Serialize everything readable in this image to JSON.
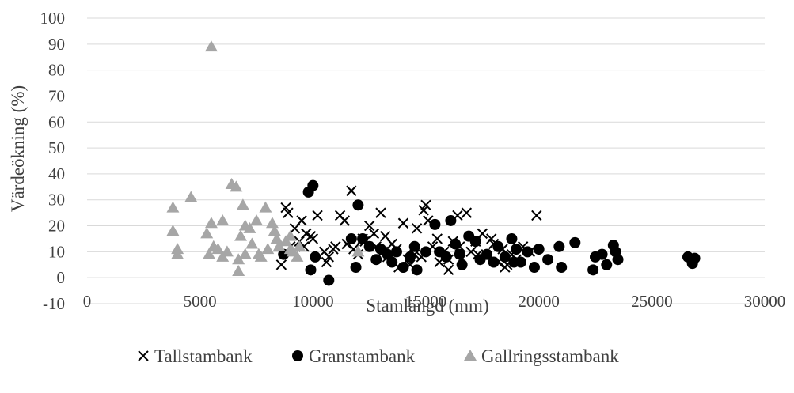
{
  "chart_data": {
    "type": "scatter",
    "title": "",
    "xlabel": "Stamlängd (mm)",
    "ylabel": "Värdeökning (%)",
    "xlim": [
      0,
      30000
    ],
    "ylim": [
      -10,
      100
    ],
    "x_ticks": [
      0,
      5000,
      10000,
      15000,
      20000,
      25000,
      30000
    ],
    "y_ticks": [
      -10,
      0,
      10,
      20,
      30,
      40,
      50,
      60,
      70,
      80,
      90,
      100
    ],
    "grid": "horizontal",
    "legend_position": "bottom",
    "series": [
      {
        "name": "Tallstambank",
        "marker": "x",
        "color": "#000000",
        "points": [
          [
            8800,
            27
          ],
          [
            8900,
            25
          ],
          [
            9500,
            22
          ],
          [
            9200,
            19
          ],
          [
            9700,
            17
          ],
          [
            9900,
            16
          ],
          [
            10000,
            15
          ],
          [
            9400,
            14
          ],
          [
            9600,
            12
          ],
          [
            10200,
            24
          ],
          [
            10500,
            10
          ],
          [
            10700,
            8
          ],
          [
            11000,
            12
          ],
          [
            11200,
            24
          ],
          [
            11500,
            13
          ],
          [
            11700,
            33.5
          ],
          [
            11800,
            11
          ],
          [
            12000,
            9
          ],
          [
            12200,
            15
          ],
          [
            12500,
            20
          ],
          [
            12800,
            12
          ],
          [
            13000,
            25
          ],
          [
            13200,
            16
          ],
          [
            13300,
            8
          ],
          [
            13500,
            13
          ],
          [
            13700,
            11
          ],
          [
            14000,
            21
          ],
          [
            14200,
            7
          ],
          [
            14500,
            9
          ],
          [
            14600,
            19
          ],
          [
            14900,
            26
          ],
          [
            15000,
            28
          ],
          [
            15100,
            22
          ],
          [
            15300,
            12
          ],
          [
            15600,
            6
          ],
          [
            15800,
            10
          ],
          [
            16000,
            3
          ],
          [
            16200,
            14
          ],
          [
            16400,
            24
          ],
          [
            16500,
            12
          ],
          [
            16800,
            25
          ],
          [
            17000,
            10
          ],
          [
            17200,
            14
          ],
          [
            17500,
            17
          ],
          [
            17700,
            8
          ],
          [
            18000,
            13
          ],
          [
            18200,
            6
          ],
          [
            18400,
            11
          ],
          [
            18600,
            5
          ],
          [
            18800,
            9
          ],
          [
            19000,
            7
          ],
          [
            19300,
            12
          ],
          [
            19600,
            10
          ],
          [
            19900,
            24
          ],
          [
            8600,
            5
          ],
          [
            9000,
            12
          ],
          [
            10600,
            6
          ],
          [
            12300,
            14
          ],
          [
            13800,
            4
          ],
          [
            14300,
            5
          ],
          [
            15500,
            15
          ],
          [
            17300,
            9
          ],
          [
            18500,
            4
          ],
          [
            16000,
            7
          ],
          [
            13100,
            10
          ],
          [
            11400,
            22
          ],
          [
            10900,
            11
          ],
          [
            12700,
            17
          ],
          [
            14800,
            8
          ],
          [
            17900,
            15
          ]
        ]
      },
      {
        "name": "Granstambank",
        "marker": "circle",
        "color": "#000000",
        "points": [
          [
            8700,
            9
          ],
          [
            9800,
            33
          ],
          [
            10000,
            35.5
          ],
          [
            9900,
            3
          ],
          [
            10100,
            8
          ],
          [
            10700,
            -1
          ],
          [
            11700,
            15
          ],
          [
            11900,
            4
          ],
          [
            12000,
            28
          ],
          [
            12200,
            15
          ],
          [
            12500,
            12
          ],
          [
            12800,
            7
          ],
          [
            13000,
            11
          ],
          [
            13300,
            9
          ],
          [
            13700,
            10
          ],
          [
            14000,
            4
          ],
          [
            14300,
            8
          ],
          [
            14600,
            3
          ],
          [
            15000,
            10
          ],
          [
            15400,
            20.5
          ],
          [
            15600,
            10
          ],
          [
            15900,
            8
          ],
          [
            16100,
            22
          ],
          [
            16300,
            13
          ],
          [
            16600,
            5
          ],
          [
            16900,
            16
          ],
          [
            17200,
            14
          ],
          [
            17400,
            7
          ],
          [
            17700,
            9
          ],
          [
            18000,
            6
          ],
          [
            18200,
            12
          ],
          [
            18500,
            8
          ],
          [
            18800,
            15
          ],
          [
            19000,
            11
          ],
          [
            19200,
            6
          ],
          [
            19500,
            10
          ],
          [
            19800,
            4
          ],
          [
            20000,
            11
          ],
          [
            20400,
            7
          ],
          [
            20900,
            12
          ],
          [
            21000,
            4
          ],
          [
            21600,
            13.5
          ],
          [
            22400,
            3
          ],
          [
            22500,
            8
          ],
          [
            22800,
            9
          ],
          [
            23000,
            5
          ],
          [
            23300,
            12.5
          ],
          [
            23500,
            7
          ],
          [
            26600,
            8
          ],
          [
            26800,
            5.5
          ],
          [
            26900,
            7.5
          ],
          [
            14500,
            12
          ],
          [
            13500,
            6
          ],
          [
            16500,
            9
          ],
          [
            18900,
            6
          ],
          [
            23400,
            10
          ]
        ]
      },
      {
        "name": "Gallringsstambank",
        "marker": "triangle",
        "color": "#a6a6a6",
        "points": [
          [
            3800,
            27
          ],
          [
            3800,
            18
          ],
          [
            4000,
            11
          ],
          [
            4000,
            9
          ],
          [
            4600,
            31
          ],
          [
            5300,
            17
          ],
          [
            5400,
            9
          ],
          [
            5500,
            89
          ],
          [
            5500,
            21
          ],
          [
            5600,
            12
          ],
          [
            5800,
            11
          ],
          [
            6000,
            22
          ],
          [
            6000,
            8
          ],
          [
            6400,
            36
          ],
          [
            6600,
            35
          ],
          [
            6700,
            7
          ],
          [
            6700,
            2.5
          ],
          [
            6800,
            16
          ],
          [
            6900,
            28
          ],
          [
            7000,
            20
          ],
          [
            7200,
            19
          ],
          [
            7300,
            13
          ],
          [
            7500,
            22
          ],
          [
            7600,
            9
          ],
          [
            7700,
            8
          ],
          [
            7900,
            27
          ],
          [
            8000,
            11
          ],
          [
            8200,
            21
          ],
          [
            8400,
            15
          ],
          [
            8500,
            12
          ],
          [
            8800,
            14
          ],
          [
            9000,
            11
          ],
          [
            9100,
            10
          ],
          [
            9300,
            8
          ],
          [
            9400,
            12
          ],
          [
            12000,
            10
          ],
          [
            7000,
            9
          ],
          [
            8300,
            18
          ],
          [
            9000,
            16
          ],
          [
            6200,
            10
          ]
        ]
      }
    ]
  }
}
